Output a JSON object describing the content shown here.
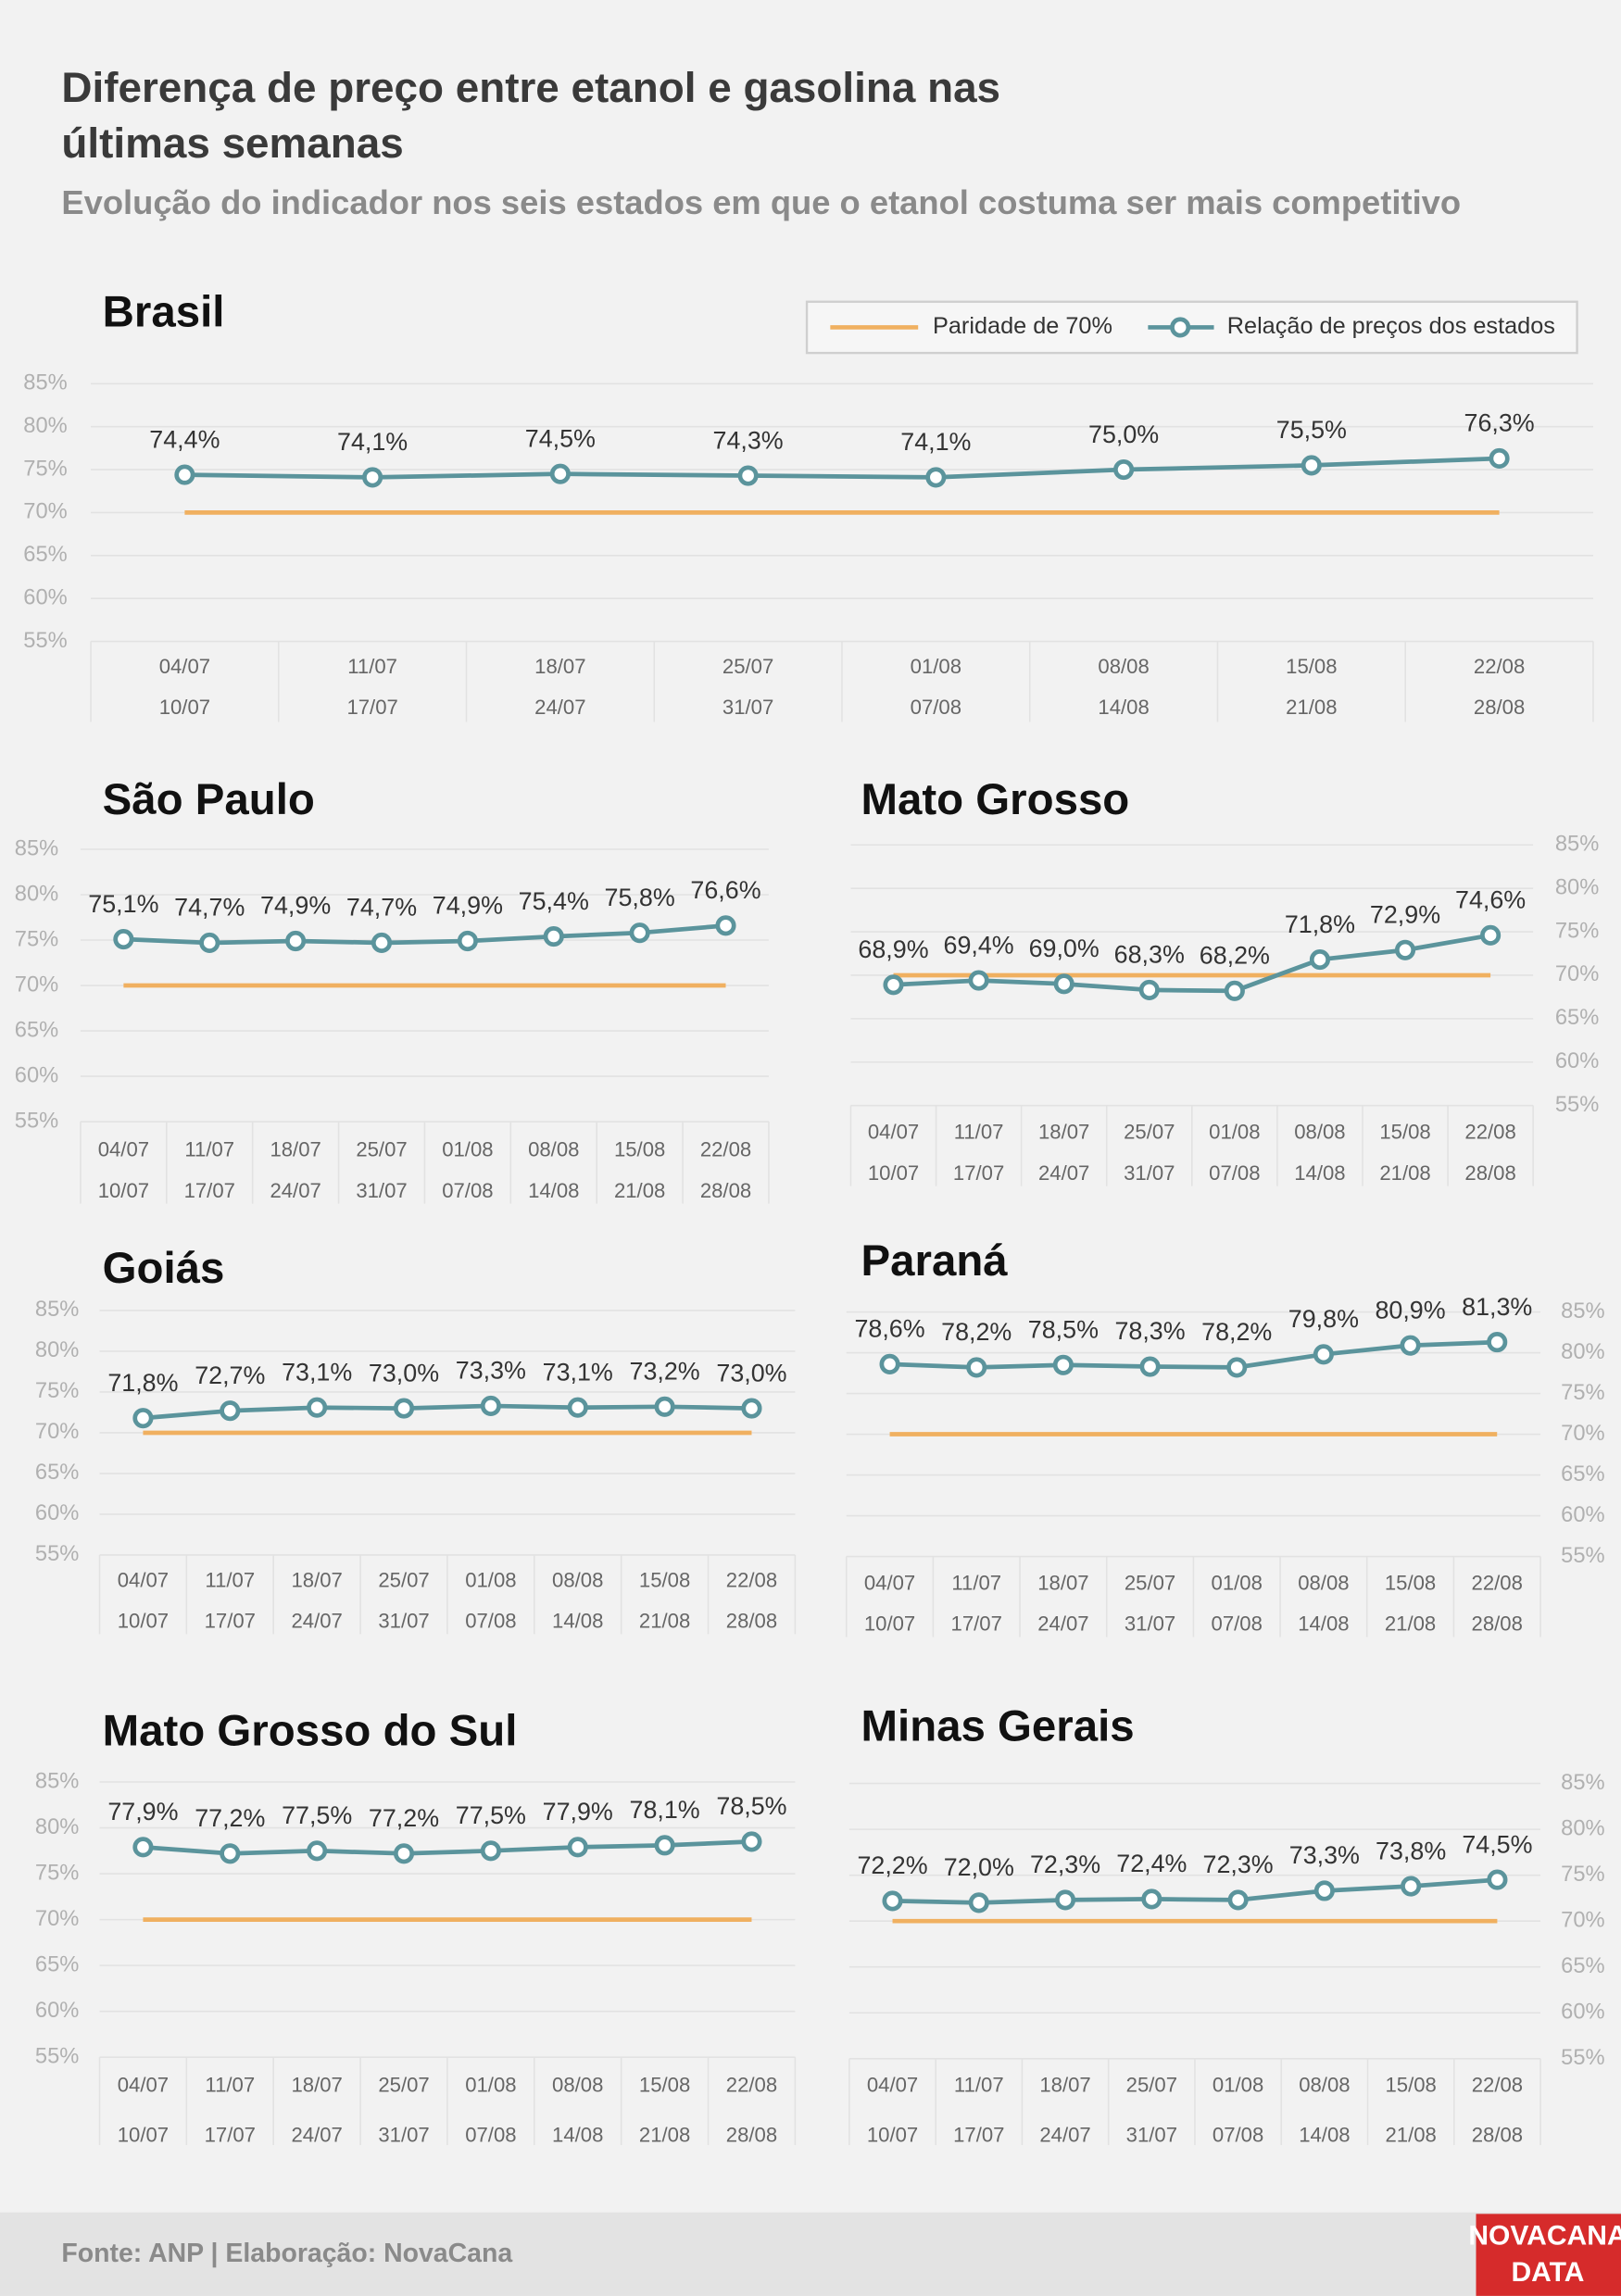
{
  "header": {
    "title": [
      "Diferença de preço entre etanol e gasolina nas",
      "últimas semanas"
    ],
    "subtitle": "Evolução do indicador nos seis estados em que o etanol costuma ser mais competitivo"
  },
  "footer": {
    "source": "Fonte: ANP | Elaboração: NovaCana",
    "logo": [
      "NOVACANA",
      "DATA"
    ]
  },
  "chart_data": [
    {
      "type": "line",
      "title": "Brasil",
      "legend": "top-right",
      "y_axis_side": "left",
      "categories": [
        [
          "04/07",
          "10/07"
        ],
        [
          "11/07",
          "17/07"
        ],
        [
          "18/07",
          "24/07"
        ],
        [
          "25/07",
          "31/07"
        ],
        [
          "01/08",
          "07/08"
        ],
        [
          "08/08",
          "14/08"
        ],
        [
          "15/08",
          "21/08"
        ],
        [
          "22/08",
          "28/08"
        ]
      ],
      "ylim": [
        55,
        85
      ],
      "yticks": [
        {
          "value": 55,
          "label": "55%"
        },
        {
          "value": 60,
          "label": "60%"
        },
        {
          "value": 65,
          "label": "65%"
        },
        {
          "value": 70,
          "label": "70%"
        },
        {
          "value": 75,
          "label": "75%"
        },
        {
          "value": 80,
          "label": "80%"
        },
        {
          "value": 85,
          "label": "85%"
        }
      ],
      "grid": true,
      "series": [
        {
          "name": "Paridade de 70%",
          "color": "#f0b060",
          "values": [
            70,
            70,
            70,
            70,
            70,
            70,
            70,
            70
          ]
        },
        {
          "name": "Relação de preços dos estados",
          "color": "#5b949c",
          "values": [
            74.4,
            74.1,
            74.5,
            74.3,
            74.1,
            75.0,
            75.5,
            76.3
          ],
          "value_labels": [
            "74,4%",
            "74,1%",
            "74,5%",
            "74,3%",
            "74,1%",
            "75,0%",
            "75,5%",
            "76,3%"
          ]
        }
      ]
    },
    {
      "type": "line",
      "title": "São Paulo",
      "y_axis_side": "left",
      "categories": [
        [
          "04/07",
          "10/07"
        ],
        [
          "11/07",
          "17/07"
        ],
        [
          "18/07",
          "24/07"
        ],
        [
          "25/07",
          "31/07"
        ],
        [
          "01/08",
          "07/08"
        ],
        [
          "08/08",
          "14/08"
        ],
        [
          "15/08",
          "21/08"
        ],
        [
          "22/08",
          "28/08"
        ]
      ],
      "ylim": [
        55,
        85
      ],
      "yticks": [
        {
          "value": 55,
          "label": "55%"
        },
        {
          "value": 60,
          "label": "60%"
        },
        {
          "value": 65,
          "label": "65%"
        },
        {
          "value": 70,
          "label": "70%"
        },
        {
          "value": 75,
          "label": "75%"
        },
        {
          "value": 80,
          "label": "80%"
        },
        {
          "value": 85,
          "label": "85%"
        }
      ],
      "grid": true,
      "series": [
        {
          "color": "#f0b060",
          "values": [
            70,
            70,
            70,
            70,
            70,
            70,
            70,
            70
          ]
        },
        {
          "color": "#5b949c",
          "values": [
            75.1,
            74.7,
            74.9,
            74.7,
            74.9,
            75.4,
            75.8,
            76.6
          ],
          "value_labels": [
            "75,1%",
            "74,7%",
            "74,9%",
            "74,7%",
            "74,9%",
            "75,4%",
            "75,8%",
            "76,6%"
          ]
        }
      ]
    },
    {
      "type": "line",
      "title": "Mato Grosso",
      "y_axis_side": "right",
      "categories": [
        [
          "04/07",
          "10/07"
        ],
        [
          "11/07",
          "17/07"
        ],
        [
          "18/07",
          "24/07"
        ],
        [
          "25/07",
          "31/07"
        ],
        [
          "01/08",
          "07/08"
        ],
        [
          "08/08",
          "14/08"
        ],
        [
          "15/08",
          "21/08"
        ],
        [
          "22/08",
          "28/08"
        ]
      ],
      "ylim": [
        55,
        85
      ],
      "yticks": [
        {
          "value": 55,
          "label": "55%"
        },
        {
          "value": 60,
          "label": "60%"
        },
        {
          "value": 65,
          "label": "65%"
        },
        {
          "value": 70,
          "label": "70%"
        },
        {
          "value": 75,
          "label": "75%"
        },
        {
          "value": 80,
          "label": "80%"
        },
        {
          "value": 85,
          "label": "85%"
        }
      ],
      "grid": true,
      "series": [
        {
          "color": "#f0b060",
          "values": [
            70,
            70,
            70,
            70,
            70,
            70,
            70,
            70
          ]
        },
        {
          "color": "#5b949c",
          "values": [
            68.9,
            69.4,
            69.0,
            68.3,
            68.2,
            71.8,
            72.9,
            74.6
          ],
          "value_labels": [
            "68,9%",
            "69,4%",
            "69,0%",
            "68,3%",
            "68,2%",
            "71,8%",
            "72,9%",
            "74,6%"
          ]
        }
      ]
    },
    {
      "type": "line",
      "title": "Goiás",
      "y_axis_side": "left",
      "categories": [
        [
          "04/07",
          "10/07"
        ],
        [
          "11/07",
          "17/07"
        ],
        [
          "18/07",
          "24/07"
        ],
        [
          "25/07",
          "31/07"
        ],
        [
          "01/08",
          "07/08"
        ],
        [
          "08/08",
          "14/08"
        ],
        [
          "15/08",
          "21/08"
        ],
        [
          "22/08",
          "28/08"
        ]
      ],
      "ylim": [
        55,
        85
      ],
      "yticks": [
        {
          "value": 55,
          "label": "55%"
        },
        {
          "value": 60,
          "label": "60%"
        },
        {
          "value": 65,
          "label": "65%"
        },
        {
          "value": 70,
          "label": "70%"
        },
        {
          "value": 75,
          "label": "75%"
        },
        {
          "value": 80,
          "label": "80%"
        },
        {
          "value": 85,
          "label": "85%"
        }
      ],
      "grid": true,
      "series": [
        {
          "color": "#f0b060",
          "values": [
            70,
            70,
            70,
            70,
            70,
            70,
            70,
            70
          ]
        },
        {
          "color": "#5b949c",
          "values": [
            71.8,
            72.7,
            73.1,
            73.0,
            73.3,
            73.1,
            73.2,
            73.0
          ],
          "value_labels": [
            "71,8%",
            "72,7%",
            "73,1%",
            "73,0%",
            "73,3%",
            "73,1%",
            "73,2%",
            "73,0%"
          ]
        }
      ]
    },
    {
      "type": "line",
      "title": "Paraná",
      "y_axis_side": "right",
      "categories": [
        [
          "04/07",
          "10/07"
        ],
        [
          "11/07",
          "17/07"
        ],
        [
          "18/07",
          "24/07"
        ],
        [
          "25/07",
          "31/07"
        ],
        [
          "01/08",
          "07/08"
        ],
        [
          "08/08",
          "14/08"
        ],
        [
          "15/08",
          "21/08"
        ],
        [
          "22/08",
          "28/08"
        ]
      ],
      "ylim": [
        55,
        85
      ],
      "yticks": [
        {
          "value": 55,
          "label": "55%"
        },
        {
          "value": 60,
          "label": "60%"
        },
        {
          "value": 65,
          "label": "65%"
        },
        {
          "value": 70,
          "label": "70%"
        },
        {
          "value": 75,
          "label": "75%"
        },
        {
          "value": 80,
          "label": "80%"
        },
        {
          "value": 85,
          "label": "85%"
        }
      ],
      "grid": true,
      "series": [
        {
          "color": "#f0b060",
          "values": [
            70,
            70,
            70,
            70,
            70,
            70,
            70,
            70
          ]
        },
        {
          "color": "#5b949c",
          "values": [
            78.6,
            78.2,
            78.5,
            78.3,
            78.2,
            79.8,
            80.9,
            81.3
          ],
          "value_labels": [
            "78,6%",
            "78,2%",
            "78,5%",
            "78,3%",
            "78,2%",
            "79,8%",
            "80,9%",
            "81,3%"
          ]
        }
      ]
    },
    {
      "type": "line",
      "title": "Mato Grosso do Sul",
      "y_axis_side": "left",
      "categories": [
        [
          "04/07",
          "10/07"
        ],
        [
          "11/07",
          "17/07"
        ],
        [
          "18/07",
          "24/07"
        ],
        [
          "25/07",
          "31/07"
        ],
        [
          "01/08",
          "07/08"
        ],
        [
          "08/08",
          "14/08"
        ],
        [
          "15/08",
          "21/08"
        ],
        [
          "22/08",
          "28/08"
        ]
      ],
      "ylim": [
        55,
        85
      ],
      "yticks": [
        {
          "value": 55,
          "label": "55%"
        },
        {
          "value": 60,
          "label": "60%"
        },
        {
          "value": 65,
          "label": "65%"
        },
        {
          "value": 70,
          "label": "70%"
        },
        {
          "value": 75,
          "label": "75%"
        },
        {
          "value": 80,
          "label": "80%"
        },
        {
          "value": 85,
          "label": "85%"
        }
      ],
      "grid": true,
      "series": [
        {
          "color": "#f0b060",
          "values": [
            70,
            70,
            70,
            70,
            70,
            70,
            70,
            70
          ]
        },
        {
          "color": "#5b949c",
          "values": [
            77.9,
            77.2,
            77.5,
            77.2,
            77.5,
            77.9,
            78.1,
            78.5
          ],
          "value_labels": [
            "77,9%",
            "77,2%",
            "77,5%",
            "77,2%",
            "77,5%",
            "77,9%",
            "78,1%",
            "78,5%"
          ]
        }
      ]
    },
    {
      "type": "line",
      "title": "Minas Gerais",
      "y_axis_side": "right",
      "categories": [
        [
          "04/07",
          "10/07"
        ],
        [
          "11/07",
          "17/07"
        ],
        [
          "18/07",
          "24/07"
        ],
        [
          "25/07",
          "31/07"
        ],
        [
          "01/08",
          "07/08"
        ],
        [
          "08/08",
          "14/08"
        ],
        [
          "15/08",
          "21/08"
        ],
        [
          "22/08",
          "28/08"
        ]
      ],
      "ylim": [
        55,
        85
      ],
      "yticks": [
        {
          "value": 55,
          "label": "55%"
        },
        {
          "value": 60,
          "label": "60%"
        },
        {
          "value": 65,
          "label": "65%"
        },
        {
          "value": 70,
          "label": "70%"
        },
        {
          "value": 75,
          "label": "75%"
        },
        {
          "value": 80,
          "label": "80%"
        },
        {
          "value": 85,
          "label": "85%"
        }
      ],
      "grid": true,
      "series": [
        {
          "color": "#f0b060",
          "values": [
            70,
            70,
            70,
            70,
            70,
            70,
            70,
            70
          ]
        },
        {
          "color": "#5b949c",
          "values": [
            72.2,
            72.0,
            72.3,
            72.4,
            72.3,
            73.3,
            73.8,
            74.5
          ],
          "value_labels": [
            "72,2%",
            "72,0%",
            "72,3%",
            "72,4%",
            "72,3%",
            "73,3%",
            "73,8%",
            "74,5%"
          ]
        }
      ]
    }
  ]
}
